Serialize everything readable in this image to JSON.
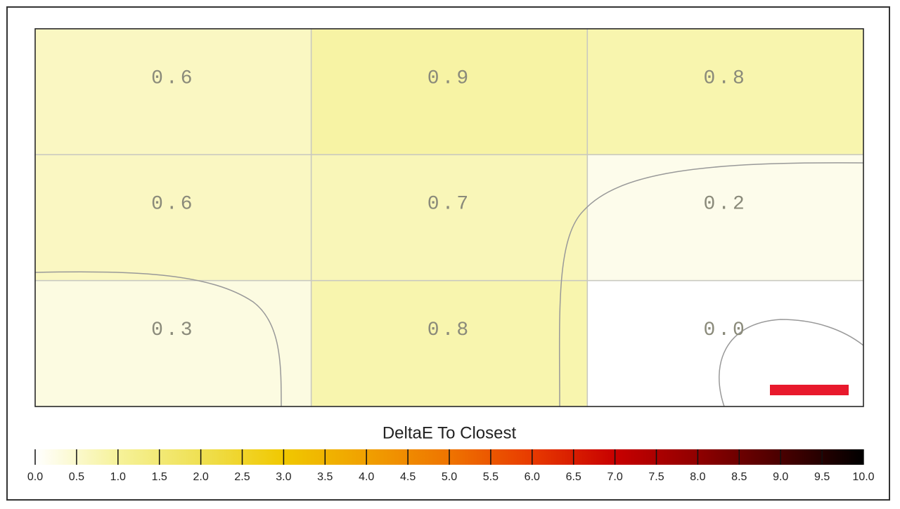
{
  "chart_data": {
    "type": "heatmap",
    "values": [
      [
        0.6,
        0.9,
        0.8
      ],
      [
        0.6,
        0.7,
        0.2
      ],
      [
        0.3,
        0.8,
        0.0
      ]
    ],
    "value_labels": [
      [
        "0.6",
        "0.9",
        "0.8"
      ],
      [
        "0.6",
        "0.7",
        "0.2"
      ],
      [
        "0.3",
        "0.8",
        "0.0"
      ]
    ],
    "colorbar_title": "DeltaE To Closest",
    "clim": [
      0,
      10
    ],
    "colormap": [
      "#ffffff",
      "#f6f29a",
      "#efe052",
      "#f0c800",
      "#f0a000",
      "#ef7400",
      "#e83a00",
      "#c80000",
      "#900000",
      "#4a0000",
      "#000000"
    ],
    "cticks": [
      {
        "value": 0,
        "label": "0.0"
      },
      0.5,
      {
        "value": 1,
        "label": "1.0"
      },
      1.5,
      {
        "value": 2,
        "label": "2.0"
      },
      2.5,
      {
        "value": 3,
        "label": "3.0"
      },
      3.5,
      {
        "value": 4,
        "label": "4.0"
      },
      4.5,
      {
        "value": 5,
        "label": "5.0"
      },
      5.5,
      {
        "value": 6,
        "label": "6.0"
      },
      6.5,
      {
        "value": 7,
        "label": "7.0"
      },
      7.5,
      {
        "value": 8,
        "label": "8.0"
      },
      8.5,
      {
        "value": 9,
        "label": "9.0"
      },
      9.5,
      {
        "value": 10,
        "label": "10.0"
      }
    ]
  }
}
